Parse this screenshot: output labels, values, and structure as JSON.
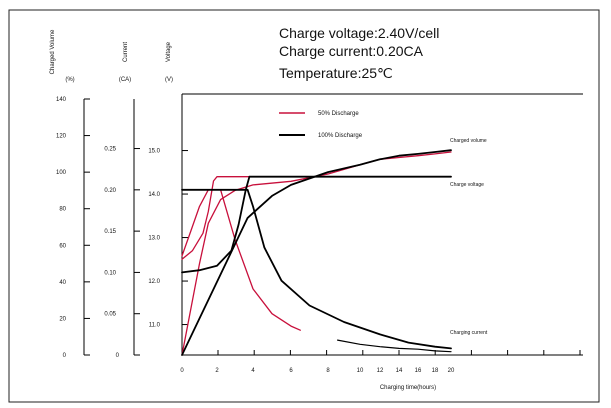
{
  "chart_data": {
    "type": "line",
    "conditions": [
      "Charge voltage:2.40V/cell",
      "Charge current:0.20CA",
      "Temperature:25℃"
    ],
    "axes": {
      "charged_volume": {
        "title": "Charged Volume",
        "unit": "(%)",
        "ticks": [
          0,
          20,
          40,
          60,
          80,
          100,
          120,
          140
        ],
        "range": [
          0,
          140
        ]
      },
      "current": {
        "title": "Current",
        "unit": "(CA)",
        "ticks": [
          0,
          0.05,
          0.1,
          0.15,
          0.2,
          0.25
        ],
        "tick_labels": [
          "0",
          "0.05",
          "0.10",
          "0.15",
          "0.20",
          "0.25"
        ],
        "range": [
          0,
          0.31
        ]
      },
      "voltage": {
        "title": "Voltage",
        "unit": "(V)",
        "ticks": [
          11.0,
          12.0,
          13.0,
          14.0,
          15.0
        ],
        "tick_labels": [
          "11.0",
          "12.0",
          "13.0",
          "14.0",
          "15.0"
        ],
        "range": [
          10.3,
          16.3
        ]
      },
      "x": {
        "label": "Charging time(hours)",
        "ticks": [
          0,
          2,
          4,
          6,
          8,
          10,
          12,
          14,
          16,
          18,
          20
        ],
        "range": [
          0,
          22
        ]
      }
    },
    "legend": [
      {
        "name": "50% Discharge",
        "color": "#c8103c"
      },
      {
        "name": "100% Discharge",
        "color": "#000000"
      }
    ],
    "annotations": [
      "Charged volume",
      "Charge voltage",
      "Charging current"
    ],
    "colors": {
      "red": "#c8103c",
      "black": "#000000"
    },
    "series": [
      {
        "discharge": "50%",
        "quantity": "charge voltage",
        "axis": "voltage",
        "points": [
          [
            0,
            12.5
          ],
          [
            0.6,
            12.7
          ],
          [
            1.2,
            13.1
          ],
          [
            1.5,
            13.6
          ],
          [
            1.8,
            14.3
          ],
          [
            2.0,
            14.4
          ],
          [
            20,
            14.4
          ]
        ]
      },
      {
        "discharge": "50%",
        "quantity": "charging current",
        "axis": "current",
        "points": [
          [
            0,
            0.12
          ],
          [
            0.5,
            0.15
          ],
          [
            1.0,
            0.18
          ],
          [
            1.5,
            0.2
          ],
          [
            2.2,
            0.2
          ],
          [
            3.0,
            0.14
          ],
          [
            4.0,
            0.08
          ],
          [
            5.0,
            0.05
          ],
          [
            6.0,
            0.035
          ],
          [
            6.5,
            0.03
          ]
        ]
      },
      {
        "discharge": "50%",
        "quantity": "charged volume",
        "axis": "charged_volume",
        "points": [
          [
            0,
            0
          ],
          [
            1,
            50
          ],
          [
            1.5,
            72
          ],
          [
            2.2,
            85
          ],
          [
            3,
            90
          ],
          [
            4,
            93
          ],
          [
            6,
            95
          ],
          [
            8,
            99
          ],
          [
            10,
            104
          ],
          [
            12,
            107
          ],
          [
            14,
            108
          ],
          [
            16,
            109
          ],
          [
            18,
            110
          ],
          [
            20,
            111
          ]
        ]
      },
      {
        "discharge": "100%",
        "quantity": "charge voltage",
        "axis": "voltage",
        "points": [
          [
            0,
            12.2
          ],
          [
            1,
            12.25
          ],
          [
            2,
            12.35
          ],
          [
            2.8,
            12.7
          ],
          [
            3.2,
            13.3
          ],
          [
            3.6,
            14.1
          ],
          [
            3.8,
            14.4
          ],
          [
            20,
            14.4
          ]
        ]
      },
      {
        "discharge": "100%",
        "quantity": "charging current",
        "axis": "current",
        "points": [
          [
            0,
            0.2
          ],
          [
            3.7,
            0.2
          ],
          [
            4.0,
            0.18
          ],
          [
            4.6,
            0.13
          ],
          [
            5.5,
            0.09
          ],
          [
            7.0,
            0.06
          ],
          [
            9.0,
            0.04
          ],
          [
            12,
            0.025
          ],
          [
            15,
            0.015
          ],
          [
            18,
            0.01
          ],
          [
            20,
            0.008
          ]
        ]
      },
      {
        "discharge": "100%",
        "quantity": "charged volume",
        "axis": "charged_volume",
        "points": [
          [
            0,
            0
          ],
          [
            3.7,
            75
          ],
          [
            5,
            87
          ],
          [
            6,
            93
          ],
          [
            8,
            100
          ],
          [
            10,
            104
          ],
          [
            12,
            107
          ],
          [
            14,
            109
          ],
          [
            16,
            110
          ],
          [
            18,
            111
          ],
          [
            20,
            112
          ]
        ]
      },
      {
        "discharge": "both",
        "quantity": "charging current tail",
        "axis": "current",
        "points": [
          [
            8.6,
            0.018
          ],
          [
            10,
            0.013
          ],
          [
            12,
            0.01
          ],
          [
            14,
            0.008
          ],
          [
            16,
            0.007
          ],
          [
            18,
            0.005
          ],
          [
            20,
            0.004
          ]
        ]
      }
    ]
  }
}
